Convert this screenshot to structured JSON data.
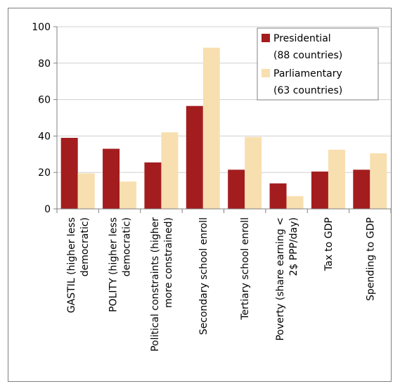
{
  "chart_data": {
    "type": "bar",
    "title": "",
    "xlabel": "",
    "ylabel": "",
    "ylim": [
      0,
      100
    ],
    "yticks": [
      0,
      20,
      40,
      60,
      80,
      100
    ],
    "grid": true,
    "legend_position": "top-right",
    "categories": [
      [
        "GASTIL (higher less",
        "democratic)"
      ],
      [
        "POLITY (higher less",
        "democratic)"
      ],
      [
        "Political constraints (higher",
        "more constrained)"
      ],
      [
        "Secondary school enroll"
      ],
      [
        "Tertiary school enroll"
      ],
      [
        "Poverty (share earning <",
        "2$ PPP/day)"
      ],
      [
        "Tax to GDP"
      ],
      [
        "Spending to GDP"
      ]
    ],
    "series": [
      {
        "name": [
          "Presidential",
          "(88 countries)"
        ],
        "color": "#a31d1f",
        "values": [
          39,
          33,
          25.5,
          56.5,
          21.5,
          14,
          20.5,
          21.5
        ]
      },
      {
        "name": [
          "Parliamentary",
          "(63 countries)"
        ],
        "color": "#f8dfb0",
        "values": [
          19.5,
          15,
          42,
          88.5,
          39.5,
          7,
          32.5,
          30.5
        ]
      }
    ]
  }
}
